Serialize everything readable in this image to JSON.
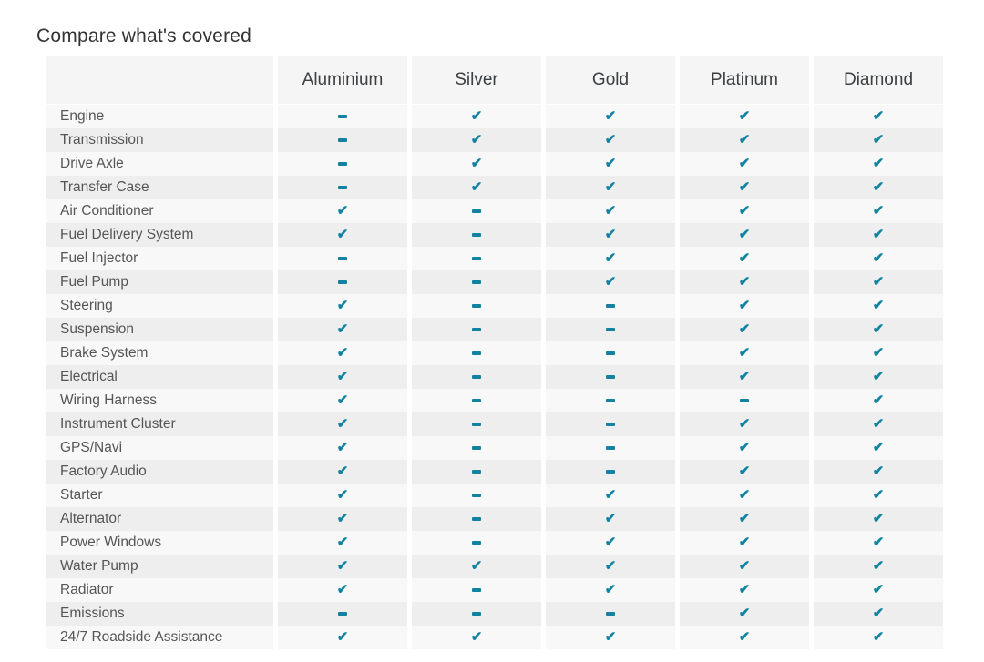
{
  "page": {
    "title": "Compare what's covered"
  },
  "table": {
    "columns": [
      "Aluminium",
      "Silver",
      "Gold",
      "Platinum",
      "Diamond"
    ],
    "rows": [
      {
        "label": "Engine",
        "coverage": [
          false,
          true,
          true,
          true,
          true
        ]
      },
      {
        "label": "Transmission",
        "coverage": [
          false,
          true,
          true,
          true,
          true
        ]
      },
      {
        "label": "Drive Axle",
        "coverage": [
          false,
          true,
          true,
          true,
          true
        ]
      },
      {
        "label": "Transfer Case",
        "coverage": [
          false,
          true,
          true,
          true,
          true
        ]
      },
      {
        "label": "Air Conditioner",
        "coverage": [
          true,
          false,
          true,
          true,
          true
        ]
      },
      {
        "label": "Fuel Delivery System",
        "coverage": [
          true,
          false,
          true,
          true,
          true
        ]
      },
      {
        "label": "Fuel Injector",
        "coverage": [
          false,
          false,
          true,
          true,
          true
        ]
      },
      {
        "label": "Fuel Pump",
        "coverage": [
          false,
          false,
          true,
          true,
          true
        ]
      },
      {
        "label": "Steering",
        "coverage": [
          true,
          false,
          false,
          true,
          true
        ]
      },
      {
        "label": "Suspension",
        "coverage": [
          true,
          false,
          false,
          true,
          true
        ]
      },
      {
        "label": "Brake System",
        "coverage": [
          true,
          false,
          false,
          true,
          true
        ]
      },
      {
        "label": "Electrical",
        "coverage": [
          true,
          false,
          false,
          true,
          true
        ]
      },
      {
        "label": "Wiring Harness",
        "coverage": [
          true,
          false,
          false,
          false,
          true
        ]
      },
      {
        "label": "Instrument Cluster",
        "coverage": [
          true,
          false,
          false,
          true,
          true
        ]
      },
      {
        "label": "GPS/Navi",
        "coverage": [
          true,
          false,
          false,
          true,
          true
        ]
      },
      {
        "label": "Factory Audio",
        "coverage": [
          true,
          false,
          false,
          true,
          true
        ]
      },
      {
        "label": "Starter",
        "coverage": [
          true,
          false,
          true,
          true,
          true
        ]
      },
      {
        "label": "Alternator",
        "coverage": [
          true,
          false,
          true,
          true,
          true
        ]
      },
      {
        "label": "Power Windows",
        "coverage": [
          true,
          false,
          true,
          true,
          true
        ]
      },
      {
        "label": "Water Pump",
        "coverage": [
          true,
          true,
          true,
          true,
          true
        ]
      },
      {
        "label": "Radiator",
        "coverage": [
          true,
          false,
          true,
          true,
          true
        ]
      },
      {
        "label": "Emissions",
        "coverage": [
          false,
          false,
          false,
          true,
          true
        ]
      },
      {
        "label": "24/7 Roadside Assistance",
        "coverage": [
          true,
          true,
          true,
          true,
          true
        ]
      }
    ]
  },
  "icons": {
    "covered": "check-icon",
    "covered_glyph": "✔",
    "not_covered": "dash-icon",
    "not_covered_glyph": "-"
  },
  "colors": {
    "accent_teal": "#1182a0",
    "header_bg": "#f5f5f5",
    "row_odd_bg": "#f8f8f8",
    "row_even_bg": "#eeeeee",
    "title_text": "#333333",
    "header_text": "#3c4043",
    "label_text": "#565656"
  }
}
